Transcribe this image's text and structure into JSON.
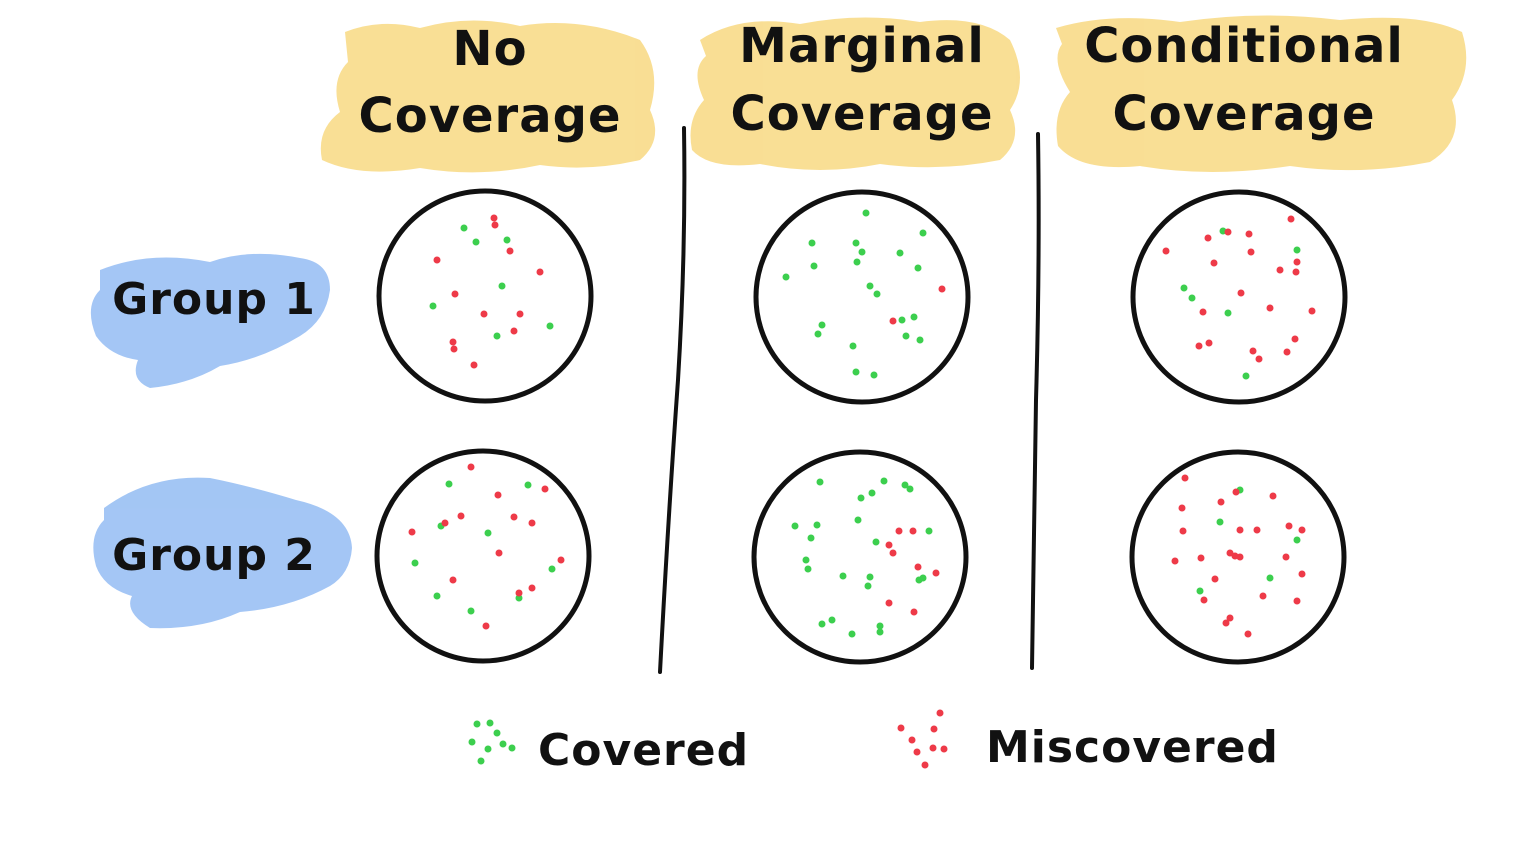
{
  "columns": [
    {
      "line1": "No",
      "line2": "Coverage"
    },
    {
      "line1": "Marginal",
      "line2": "Coverage"
    },
    {
      "line1": "Conditional",
      "line2": "Coverage"
    }
  ],
  "rows": [
    {
      "label": "Group 1"
    },
    {
      "label": "Group 2"
    }
  ],
  "legend": {
    "covered_label": "Covered",
    "miscovered_label": "Miscovered"
  },
  "colors": {
    "covered": "#3ccf4e",
    "miscovered": "#ee3a48",
    "column_highlight": "#f9dd8f",
    "row_highlight": "#9fc3f4",
    "ink": "#111111"
  }
}
